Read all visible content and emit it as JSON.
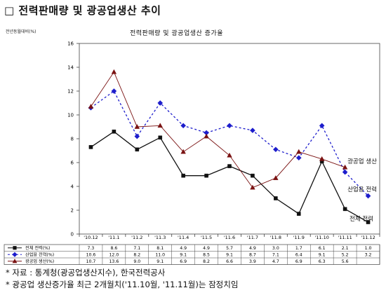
{
  "page_title": "□ 전력판매량 및 광공업생산 추이",
  "notes": [
    "* 자료 : 통계청(광공업생산지수), 한국전력공사",
    "* 광공업 생산증가율 최근 2개월치('11.10월, '11.11월)는 잠정치임"
  ],
  "colors": {
    "electric": "#111111",
    "industry_label": "#1d1dcc",
    "mining": "#7a1212"
  },
  "chart_data": {
    "type": "line",
    "title": "전력판매량 및 광공업생산 증가율",
    "ylabel": "전년동월대비(%)",
    "ylim": [
      0,
      16
    ],
    "yticks": [
      0,
      2,
      4,
      6,
      8,
      10,
      12,
      14,
      16
    ],
    "categories": [
      "'10.12",
      "'11.1",
      "'11.2",
      "'11.3",
      "'11.4",
      "'11.5",
      "'11.6",
      "'11.7",
      "'11.8",
      "'11.9",
      "'11.10",
      "'11.11",
      "'11.12"
    ],
    "series": [
      {
        "name": "전체 전력(%)",
        "label": "전체 전력",
        "color": "#111111",
        "marker": "square",
        "values": [
          7.3,
          8.6,
          7.1,
          8.1,
          4.9,
          4.9,
          5.7,
          4.9,
          3.0,
          1.7,
          6.1,
          2.1,
          1.0
        ],
        "table_values": [
          "7.3",
          "8.6",
          "7.1",
          "8.1",
          "4.9",
          "4.9",
          "5.7",
          "4.9",
          "3.0",
          "1.7",
          "6.1",
          "2.1",
          "1.0"
        ]
      },
      {
        "name": "산업용 전력(%)",
        "label": "산업용 전력",
        "color": "#1d1dcc",
        "marker": "diamond",
        "values": [
          10.6,
          12.0,
          8.2,
          11.0,
          9.1,
          8.5,
          9.1,
          8.7,
          7.1,
          6.4,
          9.1,
          5.2,
          3.2
        ],
        "table_values": [
          "10.6",
          "12.0",
          "8.2",
          "11.0",
          "9.1",
          "8.5",
          "9.1",
          "8.7",
          "7.1",
          "6.4",
          "9.1",
          "5.2",
          "3.2"
        ]
      },
      {
        "name": "광공업 생산(%)",
        "label": "광공업 생산",
        "color": "#7a1212",
        "marker": "triangle",
        "values": [
          10.7,
          13.6,
          9.0,
          9.1,
          6.9,
          8.2,
          6.6,
          3.9,
          4.7,
          6.9,
          6.3,
          5.6,
          null
        ],
        "table_values": [
          "10.7",
          "13.6",
          "9.0",
          "9.1",
          "6.9",
          "8.2",
          "6.6",
          "3.9",
          "4.7",
          "6.9",
          "6.3",
          "5.6",
          ""
        ]
      }
    ],
    "grid": false
  }
}
